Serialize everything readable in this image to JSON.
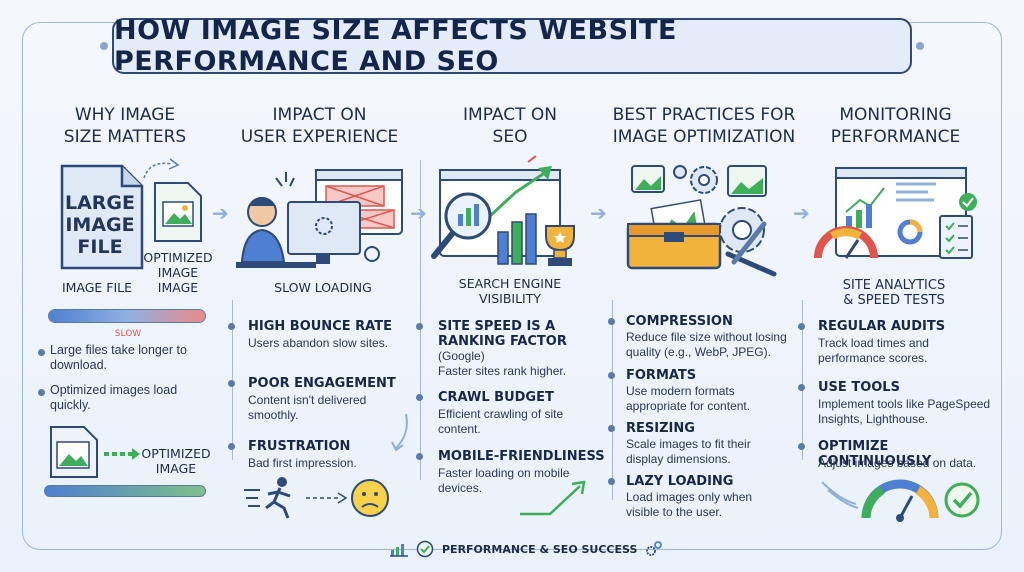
{
  "title": "HOW IMAGE SIZE AFFECTS WEBSITE PERFORMANCE AND SEO",
  "columns": [
    {
      "heading": "WHY IMAGE\nSIZE MATTERS",
      "large_file_text": "LARGE\nIMAGE\nFILE",
      "optimized_label": "OPTIMIZED\nIMAGE\nIMAGE",
      "image_file_label": "IMAGE FILE",
      "slow_label": "SLOW",
      "bullets": [
        "Large files take longer to download.",
        "Optimized images load quickly."
      ],
      "optimized_image_label": "OPTIMIZED\nIMAGE"
    },
    {
      "heading": "IMPACT ON\nUSER EXPERIENCE",
      "caption": "SLOW LOADING",
      "items": [
        {
          "title": "HIGH BOUNCE RATE",
          "body": "Users abandon slow sites."
        },
        {
          "title": "POOR ENGAGEMENT",
          "body": "Content isn't delivered smoothly."
        },
        {
          "title": "FRUSTRATION",
          "body": "Bad first impression."
        }
      ]
    },
    {
      "heading": "IMPACT ON\nSEO",
      "caption": "SEARCH ENGINE\nVISIBILITY",
      "items": [
        {
          "title": "SITE SPEED IS A\nRANKING FACTOR",
          "body": "(Google)\nFaster sites rank higher."
        },
        {
          "title": "CRAWL BUDGET",
          "body": "Efficient crawling of site content."
        },
        {
          "title": "MOBILE-FRIENDLINESS",
          "body": "Faster loading on mobile devices."
        }
      ]
    },
    {
      "heading": "BEST PRACTICES FOR\nIMAGE OPTIMIZATION",
      "items": [
        {
          "title": "COMPRESSION",
          "body": "Reduce file size without losing quality (e.g., WebP, JPEG)."
        },
        {
          "title": "FORMATS",
          "body": "Use modern formats appropriate for content."
        },
        {
          "title": "RESIZING",
          "body": "Scale images to fit their display dimensions."
        },
        {
          "title": "LAZY LOADING",
          "body": "Load images only when visible to the user."
        }
      ]
    },
    {
      "heading": "MONITORING\nPERFORMANCE",
      "caption": "SITE ANALYTICS\n& SPEED TESTS",
      "items": [
        {
          "title": "REGULAR AUDITS",
          "body": "Track load times and performance scores."
        },
        {
          "title": "USE TOOLS",
          "body": "Implement tools like PageSpeed Insights, Lighthouse."
        },
        {
          "title": "OPTIMIZE CONTINUOUSLY",
          "body": "Adjust images based on data."
        }
      ]
    }
  ],
  "footer": "PERFORMANCE & SEO SUCCESS",
  "colors": {
    "accent": "#2d4a78",
    "green": "#3fae5a",
    "red": "#e0564f",
    "bar_blue": "#4f7fd0"
  }
}
